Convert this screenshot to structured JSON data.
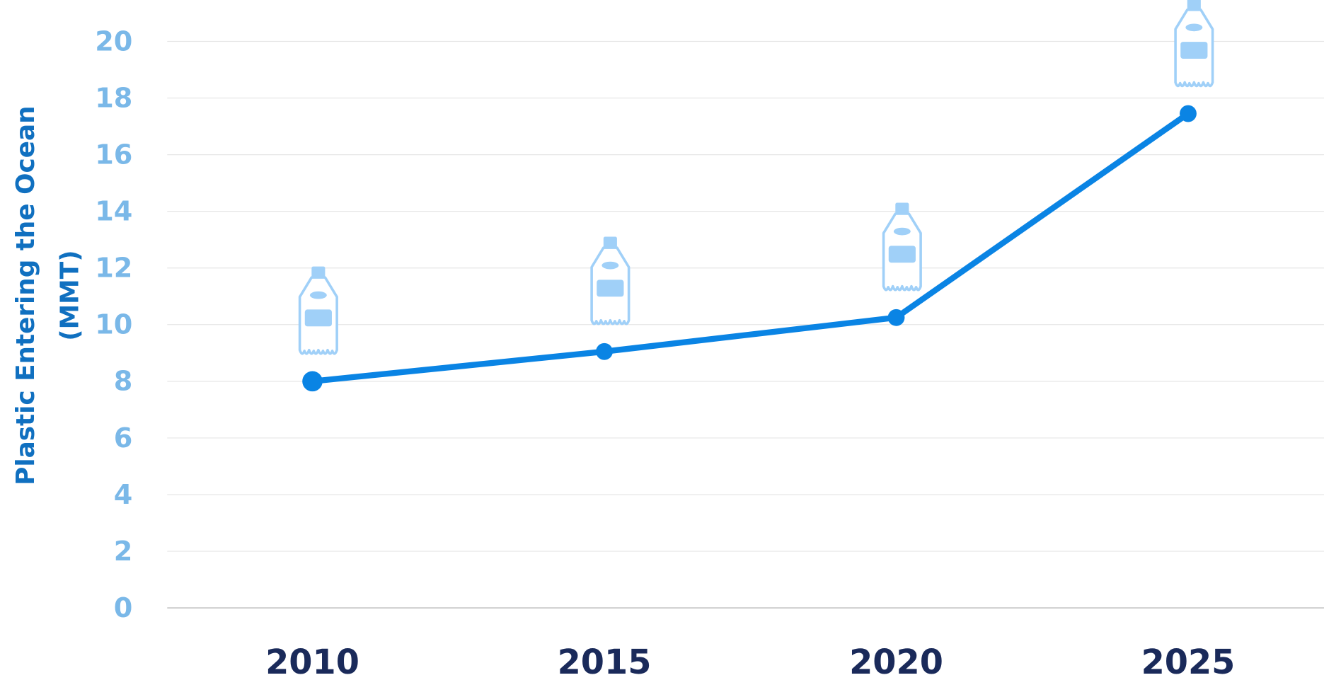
{
  "chart_data": {
    "type": "line",
    "y_label": [
      "Plastic Entering the Ocean",
      "(MMT)"
    ],
    "categories": [
      "2010",
      "2015",
      "2020",
      "2025"
    ],
    "series": [
      {
        "name": "Plastic Entering the Ocean",
        "color": "#0a84e4",
        "values": [
          8,
          9.05,
          10.25,
          17.45
        ]
      }
    ],
    "ylim": [
      0,
      20
    ],
    "yticks": [
      0,
      2,
      4,
      6,
      8,
      10,
      12,
      14,
      16,
      18,
      20
    ],
    "grid": true
  }
}
